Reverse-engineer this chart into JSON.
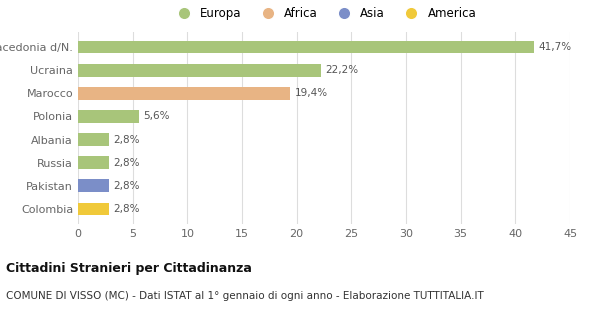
{
  "categories": [
    "Colombia",
    "Pakistan",
    "Russia",
    "Albania",
    "Polonia",
    "Marocco",
    "Ucraina",
    "Macedonia d/N."
  ],
  "values": [
    2.8,
    2.8,
    2.8,
    2.8,
    5.6,
    19.4,
    22.2,
    41.7
  ],
  "colors": [
    "#f0c93a",
    "#7b8ec8",
    "#a8c57a",
    "#a8c57a",
    "#a8c57a",
    "#e8b484",
    "#a8c57a",
    "#a8c57a"
  ],
  "labels": [
    "2,8%",
    "2,8%",
    "2,8%",
    "2,8%",
    "5,6%",
    "19,4%",
    "22,2%",
    "41,7%"
  ],
  "legend_labels": [
    "Europa",
    "Africa",
    "Asia",
    "America"
  ],
  "legend_colors": [
    "#a8c57a",
    "#e8b484",
    "#7b8ec8",
    "#f0c93a"
  ],
  "title_bold": "Cittadini Stranieri per Cittadinanza",
  "subtitle": "COMUNE DI VISSO (MC) - Dati ISTAT al 1° gennaio di ogni anno - Elaborazione TUTTITALIA.IT",
  "xlim": [
    0,
    45
  ],
  "xticks": [
    0,
    5,
    10,
    15,
    20,
    25,
    30,
    35,
    40,
    45
  ],
  "background_color": "#ffffff",
  "grid_color": "#dddddd",
  "bar_height": 0.55
}
